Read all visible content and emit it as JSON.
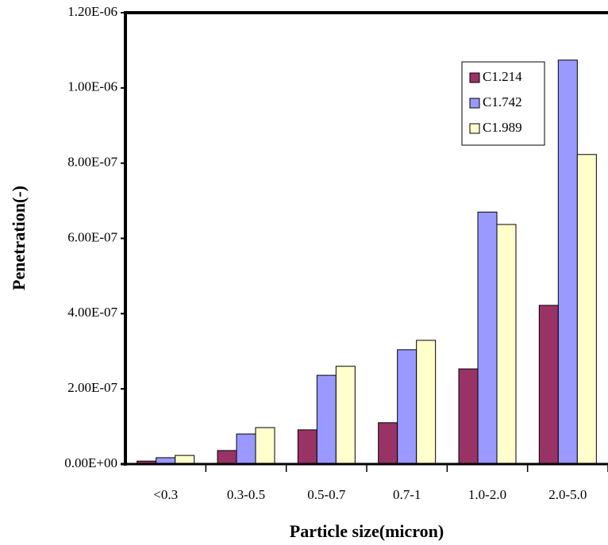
{
  "chart_data": {
    "type": "bar",
    "x_label": "Particle size(micron)",
    "y_label": "Penetration(-)",
    "categories": [
      "<0.3",
      "0.3-0.5",
      "0.5-0.7",
      "0.7-1",
      "1.0-2.0",
      "2.0-5.0"
    ],
    "series": [
      {
        "name": "C1.214",
        "color": "#993366",
        "values": [
          8e-09,
          3.6e-08,
          9.1e-08,
          1.1e-07,
          2.53e-07,
          4.22e-07
        ]
      },
      {
        "name": "C1.742",
        "color": "#9999ff",
        "values": [
          1.7e-08,
          8e-08,
          2.36e-07,
          3.04e-07,
          6.7e-07,
          1.074e-06
        ]
      },
      {
        "name": "C1.989",
        "color": "#ffffcc",
        "values": [
          2.3e-08,
          9.7e-08,
          2.6e-07,
          3.29e-07,
          6.37e-07,
          8.23e-07
        ]
      }
    ],
    "ylim": [
      0,
      1.2e-06
    ],
    "yticks": [
      {
        "value": 0,
        "label": "0.00E+00"
      },
      {
        "value": 2e-07,
        "label": "2.00E-07"
      },
      {
        "value": 4e-07,
        "label": "4.00E-07"
      },
      {
        "value": 6e-07,
        "label": "6.00E-07"
      },
      {
        "value": 8e-07,
        "label": "8.00E-07"
      },
      {
        "value": 1e-06,
        "label": "1.00E-06"
      },
      {
        "value": 1.2e-06,
        "label": "1.20E-06"
      }
    ],
    "grid": false,
    "legend": "upper right"
  }
}
